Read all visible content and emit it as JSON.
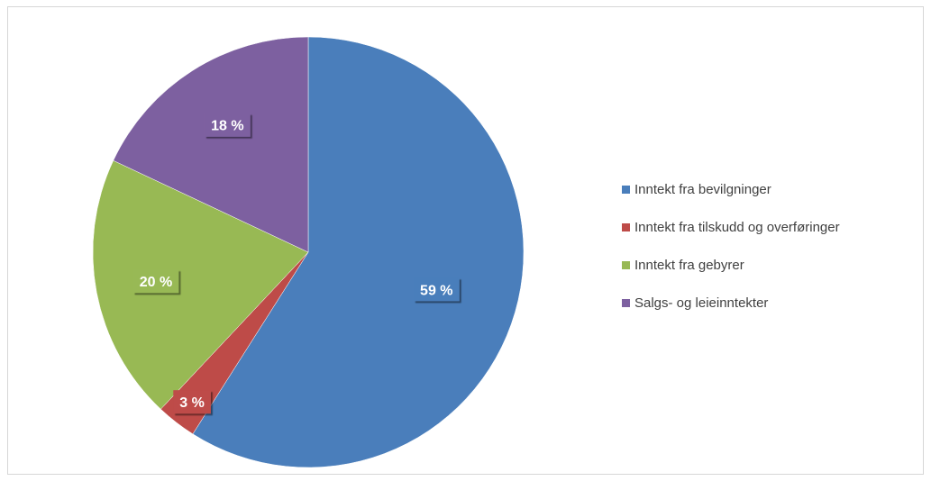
{
  "chart_data": {
    "type": "pie",
    "title": "",
    "categories": [
      "Inntekt fra bevilgninger",
      "Inntekt fra tilskudd og overføringer",
      "Inntekt fra gebyrer",
      "Salgs- og leieinntekter"
    ],
    "values": [
      59,
      3,
      20,
      18
    ],
    "data_labels": [
      "59 %",
      "3 %",
      "20 %",
      "18 %"
    ],
    "colors": [
      "#4a7ebb",
      "#be4b48",
      "#98b954",
      "#7d60a0"
    ],
    "legend_position": "right",
    "start_angle": "top, clockwise"
  }
}
